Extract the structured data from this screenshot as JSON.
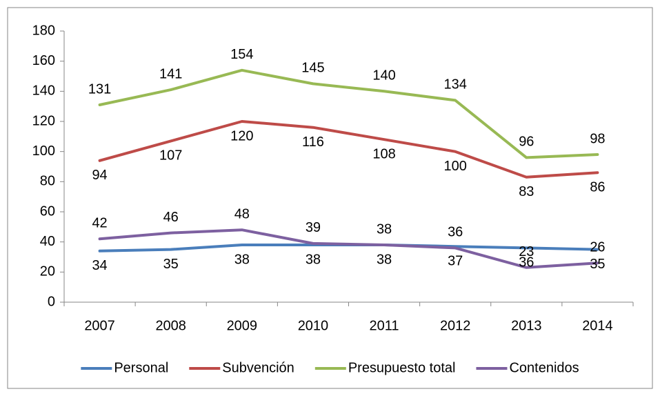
{
  "chart_data": {
    "type": "line",
    "categories": [
      "2007",
      "2008",
      "2009",
      "2010",
      "2011",
      "2012",
      "2013",
      "2014"
    ],
    "series": [
      {
        "name": "Personal",
        "color": "#4a7ebb",
        "values": [
          34,
          35,
          38,
          38,
          38,
          37,
          36,
          35
        ]
      },
      {
        "name": "Subvención",
        "color": "#be4b48",
        "values": [
          94,
          107,
          120,
          116,
          108,
          100,
          83,
          86
        ]
      },
      {
        "name": "Presupuesto total",
        "color": "#98b954",
        "values": [
          131,
          141,
          154,
          145,
          140,
          134,
          96,
          98
        ]
      },
      {
        "name": "Contenidos",
        "color": "#7d60a0",
        "values": [
          42,
          46,
          48,
          39,
          38,
          36,
          23,
          26
        ]
      }
    ],
    "ylim": [
      0,
      180
    ],
    "yticks": [
      0,
      20,
      40,
      60,
      80,
      100,
      120,
      140,
      160,
      180
    ],
    "grid": false,
    "legend": "bottom"
  }
}
